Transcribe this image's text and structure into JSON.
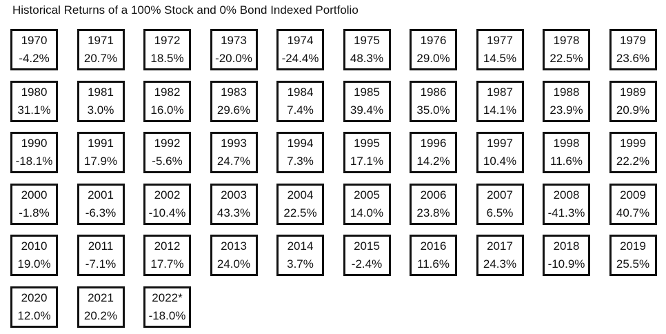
{
  "title": "Historical Returns of a 100% Stock and 0% Bond Indexed Portfolio",
  "returns": [
    {
      "year": "1970",
      "value": "-4.2%"
    },
    {
      "year": "1971",
      "value": "20.7%"
    },
    {
      "year": "1972",
      "value": "18.5%"
    },
    {
      "year": "1973",
      "value": "-20.0%"
    },
    {
      "year": "1974",
      "value": "-24.4%"
    },
    {
      "year": "1975",
      "value": "48.3%"
    },
    {
      "year": "1976",
      "value": "29.0%"
    },
    {
      "year": "1977",
      "value": "14.5%"
    },
    {
      "year": "1978",
      "value": "22.5%"
    },
    {
      "year": "1979",
      "value": "23.6%"
    },
    {
      "year": "1980",
      "value": "31.1%"
    },
    {
      "year": "1981",
      "value": "3.0%"
    },
    {
      "year": "1982",
      "value": "16.0%"
    },
    {
      "year": "1983",
      "value": "29.6%"
    },
    {
      "year": "1984",
      "value": "7.4%"
    },
    {
      "year": "1985",
      "value": "39.4%"
    },
    {
      "year": "1986",
      "value": "35.0%"
    },
    {
      "year": "1987",
      "value": "14.1%"
    },
    {
      "year": "1988",
      "value": "23.9%"
    },
    {
      "year": "1989",
      "value": "20.9%"
    },
    {
      "year": "1990",
      "value": "-18.1%"
    },
    {
      "year": "1991",
      "value": "17.9%"
    },
    {
      "year": "1992",
      "value": "-5.6%"
    },
    {
      "year": "1993",
      "value": "24.7%"
    },
    {
      "year": "1994",
      "value": "7.3%"
    },
    {
      "year": "1995",
      "value": "17.1%"
    },
    {
      "year": "1996",
      "value": "14.2%"
    },
    {
      "year": "1997",
      "value": "10.4%"
    },
    {
      "year": "1998",
      "value": "11.6%"
    },
    {
      "year": "1999",
      "value": "22.2%"
    },
    {
      "year": "2000",
      "value": "-1.8%"
    },
    {
      "year": "2001",
      "value": "-6.3%"
    },
    {
      "year": "2002",
      "value": "-10.4%"
    },
    {
      "year": "2003",
      "value": "43.3%"
    },
    {
      "year": "2004",
      "value": "22.5%"
    },
    {
      "year": "2005",
      "value": "14.0%"
    },
    {
      "year": "2006",
      "value": "23.8%"
    },
    {
      "year": "2007",
      "value": "6.5%"
    },
    {
      "year": "2008",
      "value": "-41.3%"
    },
    {
      "year": "2009",
      "value": "40.7%"
    },
    {
      "year": "2010",
      "value": "19.0%"
    },
    {
      "year": "2011",
      "value": "-7.1%"
    },
    {
      "year": "2012",
      "value": "17.7%"
    },
    {
      "year": "2013",
      "value": "24.0%"
    },
    {
      "year": "2014",
      "value": "3.7%"
    },
    {
      "year": "2015",
      "value": "-2.4%"
    },
    {
      "year": "2016",
      "value": "11.6%"
    },
    {
      "year": "2017",
      "value": "24.3%"
    },
    {
      "year": "2018",
      "value": "-10.9%"
    },
    {
      "year": "2019",
      "value": "25.5%"
    },
    {
      "year": "2020",
      "value": "12.0%"
    },
    {
      "year": "2021",
      "value": "20.2%"
    },
    {
      "year": "2022*",
      "value": "-18.0%"
    }
  ]
}
